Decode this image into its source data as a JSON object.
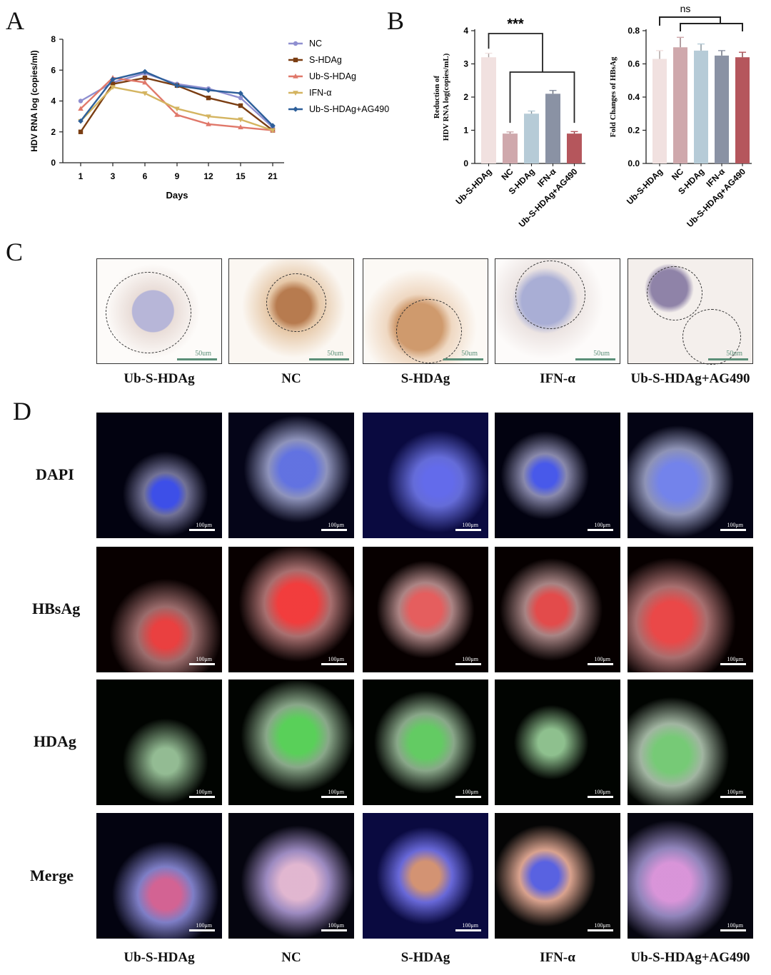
{
  "panels": {
    "A": "A",
    "B": "B",
    "C": "C",
    "D": "D"
  },
  "chart_data": [
    {
      "type": "line",
      "xlabel": "Days",
      "ylabel": "HDV RNA log (copies/ml)",
      "x": [
        "1",
        "3",
        "6",
        "9",
        "12",
        "15",
        "21"
      ],
      "ylim": [
        0,
        8
      ],
      "yticks": [
        "0",
        "2",
        "4",
        "6",
        "8"
      ],
      "legend_position": "right",
      "series": [
        {
          "name": "NC",
          "color": "#8f8fd0",
          "marker": "circle",
          "values": [
            4.0,
            5.2,
            5.8,
            5.1,
            4.8,
            4.2,
            2.3
          ]
        },
        {
          "name": "S-HDAg",
          "color": "#7a3d12",
          "marker": "square",
          "values": [
            2.0,
            5.1,
            5.5,
            5.0,
            4.2,
            3.7,
            2.1
          ]
        },
        {
          "name": "Ub-S-HDAg",
          "color": "#e0786a",
          "marker": "triangle-up",
          "values": [
            3.5,
            5.5,
            5.2,
            3.1,
            2.5,
            2.3,
            2.1
          ]
        },
        {
          "name": "IFN-α",
          "color": "#d4b460",
          "marker": "triangle-down",
          "values": [
            2.7,
            4.9,
            4.5,
            3.5,
            3.0,
            2.8,
            2.1
          ]
        },
        {
          "name": "Ub-S-HDAg+AG490",
          "color": "#2d5f9a",
          "marker": "diamond",
          "values": [
            2.7,
            5.4,
            5.9,
            5.0,
            4.7,
            4.5,
            2.4
          ]
        }
      ]
    },
    {
      "type": "bar",
      "ylabel": "Reduction of HDV RNA log(copies/mL)",
      "categories": [
        "Ub-S-HDAg",
        "NC",
        "S-HDAg",
        "IFN-α",
        "Ub-S-HDAg+AG490"
      ],
      "values": [
        3.2,
        0.9,
        1.5,
        2.1,
        0.9
      ],
      "errors": [
        0.12,
        0.05,
        0.08,
        0.1,
        0.06
      ],
      "colors": [
        "#f1e1e0",
        "#cfa8ac",
        "#b6cbd7",
        "#8a92a4",
        "#b5565c"
      ],
      "ylim": [
        0,
        4
      ],
      "yticks": [
        "0",
        "1",
        "2",
        "3",
        "4"
      ],
      "annotation": "***"
    },
    {
      "type": "bar",
      "ylabel": "Fold Changes of HBsAg",
      "categories": [
        "Ub-S-HDAg",
        "NC",
        "S-HDAg",
        "IFN-α",
        "Ub-S-HDAg+AG490"
      ],
      "values": [
        0.63,
        0.7,
        0.68,
        0.65,
        0.64
      ],
      "errors": [
        0.05,
        0.06,
        0.04,
        0.03,
        0.03
      ],
      "colors": [
        "#f1e1e0",
        "#cfa8ac",
        "#b6cbd7",
        "#8a92a4",
        "#b5565c"
      ],
      "ylim": [
        0,
        0.8
      ],
      "yticks": [
        "0.0",
        "0.2",
        "0.4",
        "0.6",
        "0.8"
      ],
      "annotation": "ns"
    }
  ],
  "panel_c": {
    "scale_bar": "50um",
    "labels": [
      "Ub-S-HDAg",
      "NC",
      "S-HDAg",
      "IFN-α",
      "Ub-S-HDAg+AG490"
    ]
  },
  "panel_d": {
    "scale_bar": "100μm",
    "rows": [
      "DAPI",
      "HBsAg",
      "HDAg",
      "Merge"
    ],
    "labels": [
      "Ub-S-HDAg",
      "NC",
      "S-HDAg",
      "IFN-α",
      "Ub-S-HDAg+AG490"
    ]
  }
}
